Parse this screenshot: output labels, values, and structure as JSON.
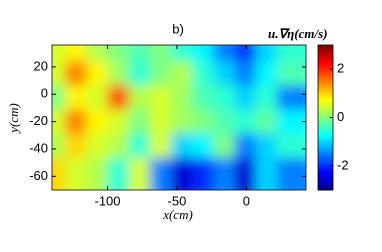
{
  "chart_data": {
    "type": "heatmap",
    "title": "b)",
    "colorbar_label": "u.∇η(cm/s)",
    "x_label": "x(cm)",
    "y_label": "y(cm)",
    "xlim": [
      -140,
      43
    ],
    "ylim": [
      -70,
      36
    ],
    "xticks": [
      -100,
      -50,
      0
    ],
    "yticks": [
      -60,
      -40,
      -20,
      0,
      20
    ],
    "colormap": "jet",
    "clim": [
      -3,
      3
    ],
    "cticks": [
      -2,
      0,
      2
    ],
    "z": [
      [
        0.5,
        0.8,
        0.3,
        0,
        -0.3,
        0,
        -0.5,
        -0.8,
        -1.5,
        -2.0,
        -1.0,
        -0.5
      ],
      [
        0.5,
        1.5,
        0.8,
        0.2,
        -0.5,
        0,
        0.3,
        -0.5,
        -1.0,
        -1.5,
        -0.8,
        -0.3
      ],
      [
        0,
        0.8,
        0.5,
        1.8,
        0.3,
        0.5,
        0.2,
        -0.3,
        -0.5,
        -1.0,
        -0.5,
        -1.5
      ],
      [
        0.5,
        1.5,
        0.8,
        0.5,
        0,
        0.5,
        0.2,
        0,
        -0.3,
        -0.5,
        -0.2,
        -0.8
      ],
      [
        0.3,
        1.0,
        0.5,
        0.3,
        -0.5,
        0.5,
        -1.0,
        -0.8,
        0,
        -1.5,
        -1.0,
        -0.5
      ],
      [
        1.0,
        0.5,
        0.3,
        -0.5,
        0.5,
        -1.5,
        -2.5,
        -2.0,
        -1.5,
        -2.5,
        -1.0,
        -1.5
      ]
    ]
  }
}
